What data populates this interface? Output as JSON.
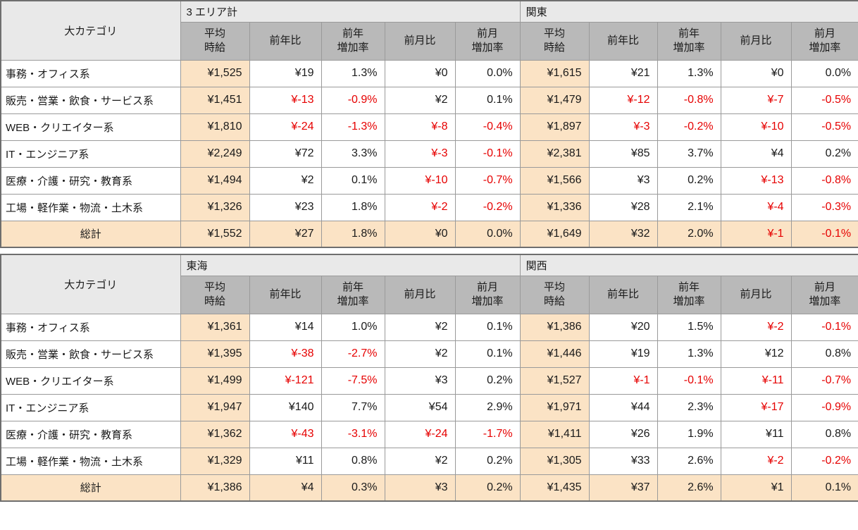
{
  "colors": {
    "column_header_bg": "#b9b9b9",
    "region_header_bg": "#e9e9e9",
    "highlight_bg": "#fbe3c5",
    "negative_text": "#e60000",
    "gridline": "#9a9a9a"
  },
  "chart_data": {
    "type": "table",
    "row_header_label": "大カテゴリ",
    "column_headers_per_region": [
      "平均時給",
      "前年比",
      "前年増加率",
      "前月比",
      "前月増加率"
    ],
    "all_regions": [
      "3エリア計",
      "関東",
      "東海",
      "関西"
    ],
    "tables": [
      {
        "category_header": "大カテゴリ",
        "col_headers": [
          "平均\n時給",
          "前年比",
          "前年\n増加率",
          "前月比",
          "前月\n増加率"
        ],
        "regions": [
          "3 エリア計",
          "関東"
        ],
        "rows": [
          {
            "category": "事務・オフィス系",
            "values": [
              [
                "¥1,525",
                "¥19",
                "1.3%",
                "¥0",
                "0.0%"
              ],
              [
                "¥1,615",
                "¥21",
                "1.3%",
                "¥0",
                "0.0%"
              ]
            ]
          },
          {
            "category": "販売・営業・飲食・サービス系",
            "values": [
              [
                "¥1,451",
                "¥-13",
                "-0.9%",
                "¥2",
                "0.1%"
              ],
              [
                "¥1,479",
                "¥-12",
                "-0.8%",
                "¥-7",
                "-0.5%"
              ]
            ]
          },
          {
            "category": "WEB・クリエイター系",
            "values": [
              [
                "¥1,810",
                "¥-24",
                "-1.3%",
                "¥-8",
                "-0.4%"
              ],
              [
                "¥1,897",
                "¥-3",
                "-0.2%",
                "¥-10",
                "-0.5%"
              ]
            ]
          },
          {
            "category": "IT・エンジニア系",
            "values": [
              [
                "¥2,249",
                "¥72",
                "3.3%",
                "¥-3",
                "-0.1%"
              ],
              [
                "¥2,381",
                "¥85",
                "3.7%",
                "¥4",
                "0.2%"
              ]
            ]
          },
          {
            "category": "医療・介護・研究・教育系",
            "values": [
              [
                "¥1,494",
                "¥2",
                "0.1%",
                "¥-10",
                "-0.7%"
              ],
              [
                "¥1,566",
                "¥3",
                "0.2%",
                "¥-13",
                "-0.8%"
              ]
            ]
          },
          {
            "category": "工場・軽作業・物流・土木系",
            "values": [
              [
                "¥1,326",
                "¥23",
                "1.8%",
                "¥-2",
                "-0.2%"
              ],
              [
                "¥1,336",
                "¥28",
                "2.1%",
                "¥-4",
                "-0.3%"
              ]
            ]
          },
          {
            "category": "総計",
            "is_total": true,
            "values": [
              [
                "¥1,552",
                "¥27",
                "1.8%",
                "¥0",
                "0.0%"
              ],
              [
                "¥1,649",
                "¥32",
                "2.0%",
                "¥-1",
                "-0.1%"
              ]
            ]
          }
        ]
      },
      {
        "category_header": "大カテゴリ",
        "col_headers": [
          "平均\n時給",
          "前年比",
          "前年\n増加率",
          "前月比",
          "前月\n増加率"
        ],
        "regions": [
          "東海",
          "関西"
        ],
        "rows": [
          {
            "category": "事務・オフィス系",
            "values": [
              [
                "¥1,361",
                "¥14",
                "1.0%",
                "¥2",
                "0.1%"
              ],
              [
                "¥1,386",
                "¥20",
                "1.5%",
                "¥-2",
                "-0.1%"
              ]
            ]
          },
          {
            "category": "販売・営業・飲食・サービス系",
            "values": [
              [
                "¥1,395",
                "¥-38",
                "-2.7%",
                "¥2",
                "0.1%"
              ],
              [
                "¥1,446",
                "¥19",
                "1.3%",
                "¥12",
                "0.8%"
              ]
            ]
          },
          {
            "category": "WEB・クリエイター系",
            "values": [
              [
                "¥1,499",
                "¥-121",
                "-7.5%",
                "¥3",
                "0.2%"
              ],
              [
                "¥1,527",
                "¥-1",
                "-0.1%",
                "¥-11",
                "-0.7%"
              ]
            ]
          },
          {
            "category": "IT・エンジニア系",
            "values": [
              [
                "¥1,947",
                "¥140",
                "7.7%",
                "¥54",
                "2.9%"
              ],
              [
                "¥1,971",
                "¥44",
                "2.3%",
                "¥-17",
                "-0.9%"
              ]
            ]
          },
          {
            "category": "医療・介護・研究・教育系",
            "values": [
              [
                "¥1,362",
                "¥-43",
                "-3.1%",
                "¥-24",
                "-1.7%"
              ],
              [
                "¥1,411",
                "¥26",
                "1.9%",
                "¥11",
                "0.8%"
              ]
            ]
          },
          {
            "category": "工場・軽作業・物流・土木系",
            "values": [
              [
                "¥1,329",
                "¥11",
                "0.8%",
                "¥2",
                "0.2%"
              ],
              [
                "¥1,305",
                "¥33",
                "2.6%",
                "¥-2",
                "-0.2%"
              ]
            ]
          },
          {
            "category": "総計",
            "is_total": true,
            "values": [
              [
                "¥1,386",
                "¥4",
                "0.3%",
                "¥3",
                "0.2%"
              ],
              [
                "¥1,435",
                "¥37",
                "2.6%",
                "¥1",
                "0.1%"
              ]
            ]
          }
        ]
      }
    ]
  }
}
